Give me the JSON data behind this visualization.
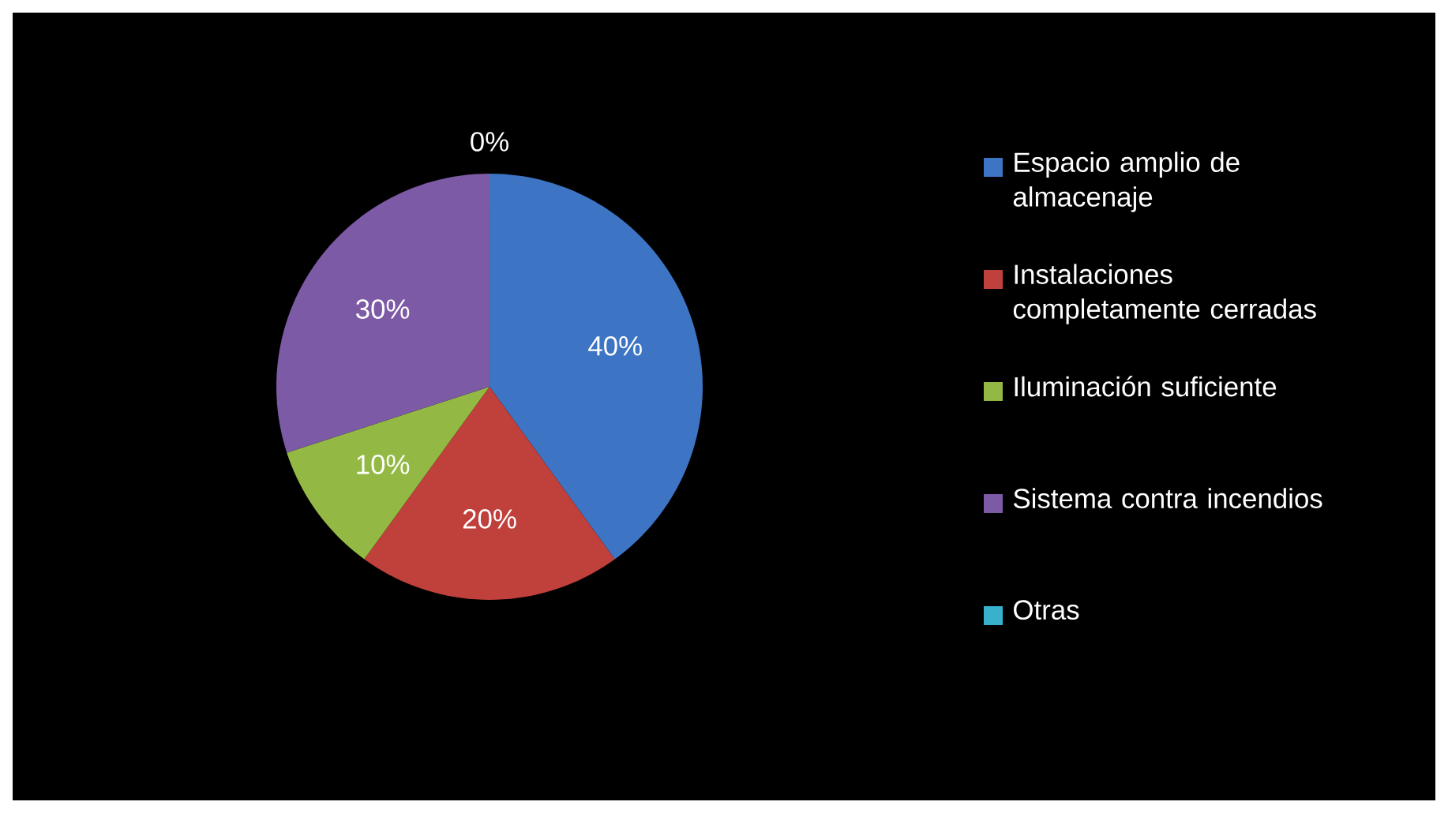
{
  "chart_data": {
    "type": "pie",
    "categories": [
      "Espacio amplio de almacenaje",
      "Instalaciones completamente cerradas",
      "Iluminación suficiente",
      "Sistema contra incendios",
      "Otras"
    ],
    "values": [
      40,
      20,
      10,
      30,
      0
    ],
    "value_labels": [
      "40%",
      "20%",
      "10%",
      "30%",
      "0%"
    ],
    "colors": [
      "#3d74c4",
      "#c0403c",
      "#93b944",
      "#7d5aa6",
      "#38b2cc"
    ],
    "legend": "right"
  }
}
